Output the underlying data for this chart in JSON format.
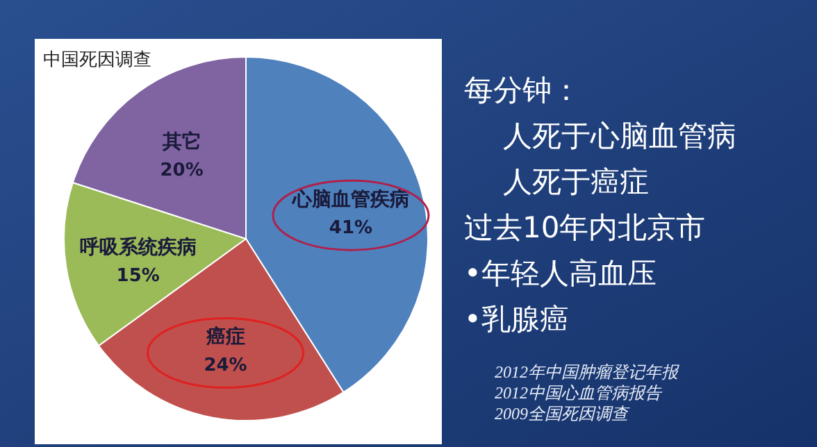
{
  "chart_data": {
    "type": "pie",
    "title": "中国死因调查",
    "categories": [
      "心脑血管疾病",
      "癌症",
      "呼吸系统疾病",
      "其它"
    ],
    "values": [
      41,
      24,
      15,
      20
    ],
    "colors": [
      "#4f81bd",
      "#c0504d",
      "#9bbb59",
      "#8064a2"
    ],
    "value_labels": [
      "41%",
      "24%",
      "15%",
      "20%"
    ],
    "annotations": [
      "每分钟：",
      "人死于心脑血管病",
      "人死于癌症",
      "过去10年内北京市",
      "•年轻人高血压",
      "•乳腺癌",
      "2012年中国肿瘤登记年报",
      "2012中国心血管病报告",
      "2009全国死因调查"
    ]
  }
}
